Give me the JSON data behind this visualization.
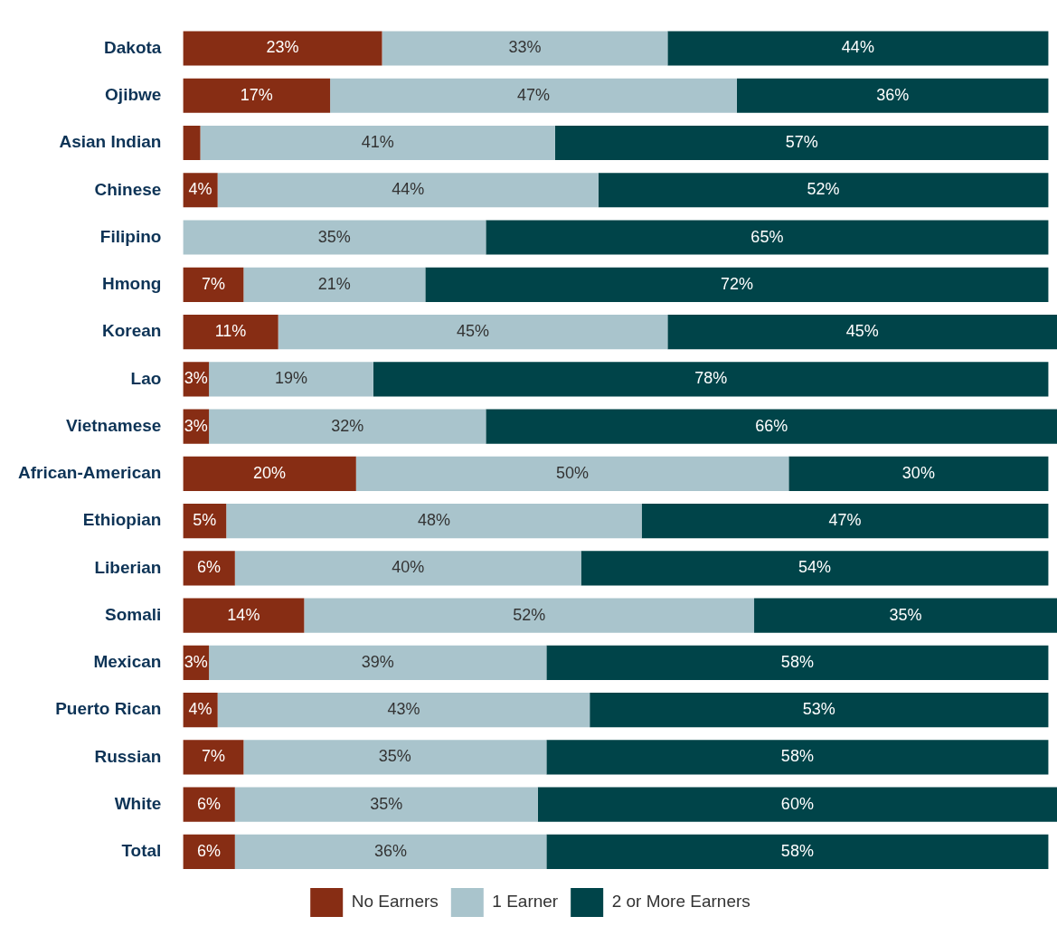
{
  "chart_data": {
    "type": "bar",
    "orientation": "horizontal",
    "stacked": true,
    "legend": "bottom",
    "tick_labels": "y",
    "categories": [
      "Dakota",
      "Ojibwe",
      "Asian Indian",
      "Chinese",
      "Filipino",
      "Hmong",
      "Korean",
      "Lao",
      "Vietnamese",
      "African-American",
      "Ethiopian",
      "Liberian",
      "Somali",
      "Mexican",
      "Puerto Rican",
      "Russian",
      "White",
      "Total"
    ],
    "series": [
      {
        "name": "No Earners",
        "color": "#872d14",
        "values": [
          23,
          17,
          2,
          4,
          0,
          7,
          11,
          3,
          3,
          20,
          5,
          6,
          14,
          3,
          4,
          7,
          6,
          6
        ],
        "value_labels": [
          "23%",
          "17%",
          null,
          "4%",
          null,
          "7%",
          "11%",
          "3%",
          "3%",
          "20%",
          "5%",
          "6%",
          "14%",
          "3%",
          "4%",
          "7%",
          "6%",
          "6%"
        ]
      },
      {
        "name": "1 Earner",
        "color": "#a9c4cc",
        "values": [
          33,
          47,
          41,
          44,
          35,
          21,
          45,
          19,
          32,
          50,
          48,
          40,
          52,
          39,
          43,
          35,
          35,
          36
        ],
        "value_labels": [
          "33%",
          "47%",
          "41%",
          "44%",
          "35%",
          "21%",
          "45%",
          "19%",
          "32%",
          "50%",
          "48%",
          "40%",
          "52%",
          "39%",
          "43%",
          "35%",
          "35%",
          "36%"
        ]
      },
      {
        "name": "2 or More Earners",
        "color": "#004449",
        "values": [
          44,
          36,
          57,
          52,
          65,
          72,
          45,
          78,
          66,
          30,
          47,
          54,
          35,
          58,
          53,
          58,
          60,
          58
        ],
        "value_labels": [
          "44%",
          "36%",
          "57%",
          "52%",
          "65%",
          "72%",
          "45%",
          "78%",
          "66%",
          "30%",
          "47%",
          "54%",
          "35%",
          "58%",
          "53%",
          "58%",
          "60%",
          "58%"
        ]
      }
    ]
  }
}
